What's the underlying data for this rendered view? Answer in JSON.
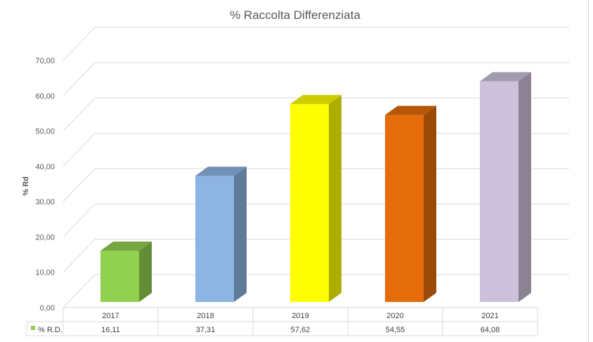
{
  "chart_data": {
    "type": "bar",
    "title": "% Raccolta Differenziata",
    "ylabel": "% Rd",
    "xlabel": "",
    "ylim": [
      0,
      70
    ],
    "yticks": [
      "0,00",
      "10,00",
      "20,00",
      "30,00",
      "40,00",
      "50,00",
      "60,00",
      "70,00"
    ],
    "categories": [
      "2017",
      "2018",
      "2019",
      "2020",
      "2021"
    ],
    "series": [
      {
        "name": "% R.D.",
        "values": [
          16.11,
          37.31,
          57.62,
          54.55,
          64.08
        ],
        "value_labels": [
          "16,11",
          "37,31",
          "57,62",
          "54,55",
          "64,08"
        ]
      }
    ],
    "bar_colors": [
      "#92d050",
      "#8db4e2",
      "#ffff00",
      "#e46c0a",
      "#ccc0da"
    ],
    "legend_color": "#92d050",
    "grid": true,
    "style": "3d-column with data table"
  }
}
